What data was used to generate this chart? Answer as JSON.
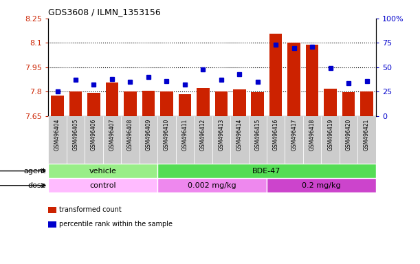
{
  "title": "GDS3608 / ILMN_1353156",
  "samples": [
    "GSM496404",
    "GSM496405",
    "GSM496406",
    "GSM496407",
    "GSM496408",
    "GSM496409",
    "GSM496410",
    "GSM496411",
    "GSM496412",
    "GSM496413",
    "GSM496414",
    "GSM496415",
    "GSM496416",
    "GSM496417",
    "GSM496418",
    "GSM496419",
    "GSM496420",
    "GSM496421"
  ],
  "bar_values": [
    7.775,
    7.8,
    7.795,
    7.855,
    7.8,
    7.805,
    7.8,
    7.787,
    7.825,
    7.802,
    7.815,
    7.797,
    8.155,
    8.1,
    8.09,
    7.82,
    7.798,
    7.802
  ],
  "percentile_values": [
    25,
    37,
    32,
    38,
    35,
    40,
    36,
    32,
    48,
    37,
    43,
    35,
    73,
    70,
    71,
    49,
    34,
    36
  ],
  "ymin": 7.65,
  "ymax": 8.25,
  "yticks": [
    7.65,
    7.8,
    7.95,
    8.1,
    8.25
  ],
  "ytick_labels": [
    "7.65",
    "7.8",
    "7.95",
    "8.1",
    "8.25"
  ],
  "y2min": 0,
  "y2max": 100,
  "y2ticks": [
    0,
    25,
    50,
    75,
    100
  ],
  "y2tick_labels": [
    "0",
    "25",
    "50",
    "75",
    "100%"
  ],
  "hlines": [
    7.8,
    7.95,
    8.1
  ],
  "bar_color": "#CC2200",
  "dot_color": "#0000CC",
  "bar_baseline": 7.65,
  "agent_groups": [
    {
      "label": "vehicle",
      "start": 0,
      "end": 6,
      "color": "#99EE88"
    },
    {
      "label": "BDE-47",
      "start": 6,
      "end": 18,
      "color": "#55DD55"
    }
  ],
  "dose_groups": [
    {
      "label": "control",
      "start": 0,
      "end": 6,
      "color": "#FFBBFF"
    },
    {
      "label": "0.002 mg/kg",
      "start": 6,
      "end": 12,
      "color": "#EE88EE"
    },
    {
      "label": "0.2 mg/kg",
      "start": 12,
      "end": 18,
      "color": "#CC44CC"
    }
  ],
  "legend_items": [
    {
      "color": "#CC2200",
      "label": "transformed count"
    },
    {
      "color": "#0000CC",
      "label": "percentile rank within the sample"
    }
  ],
  "xlabel_bg_color": "#CCCCCC",
  "plot_bg_color": "#FFFFFF"
}
